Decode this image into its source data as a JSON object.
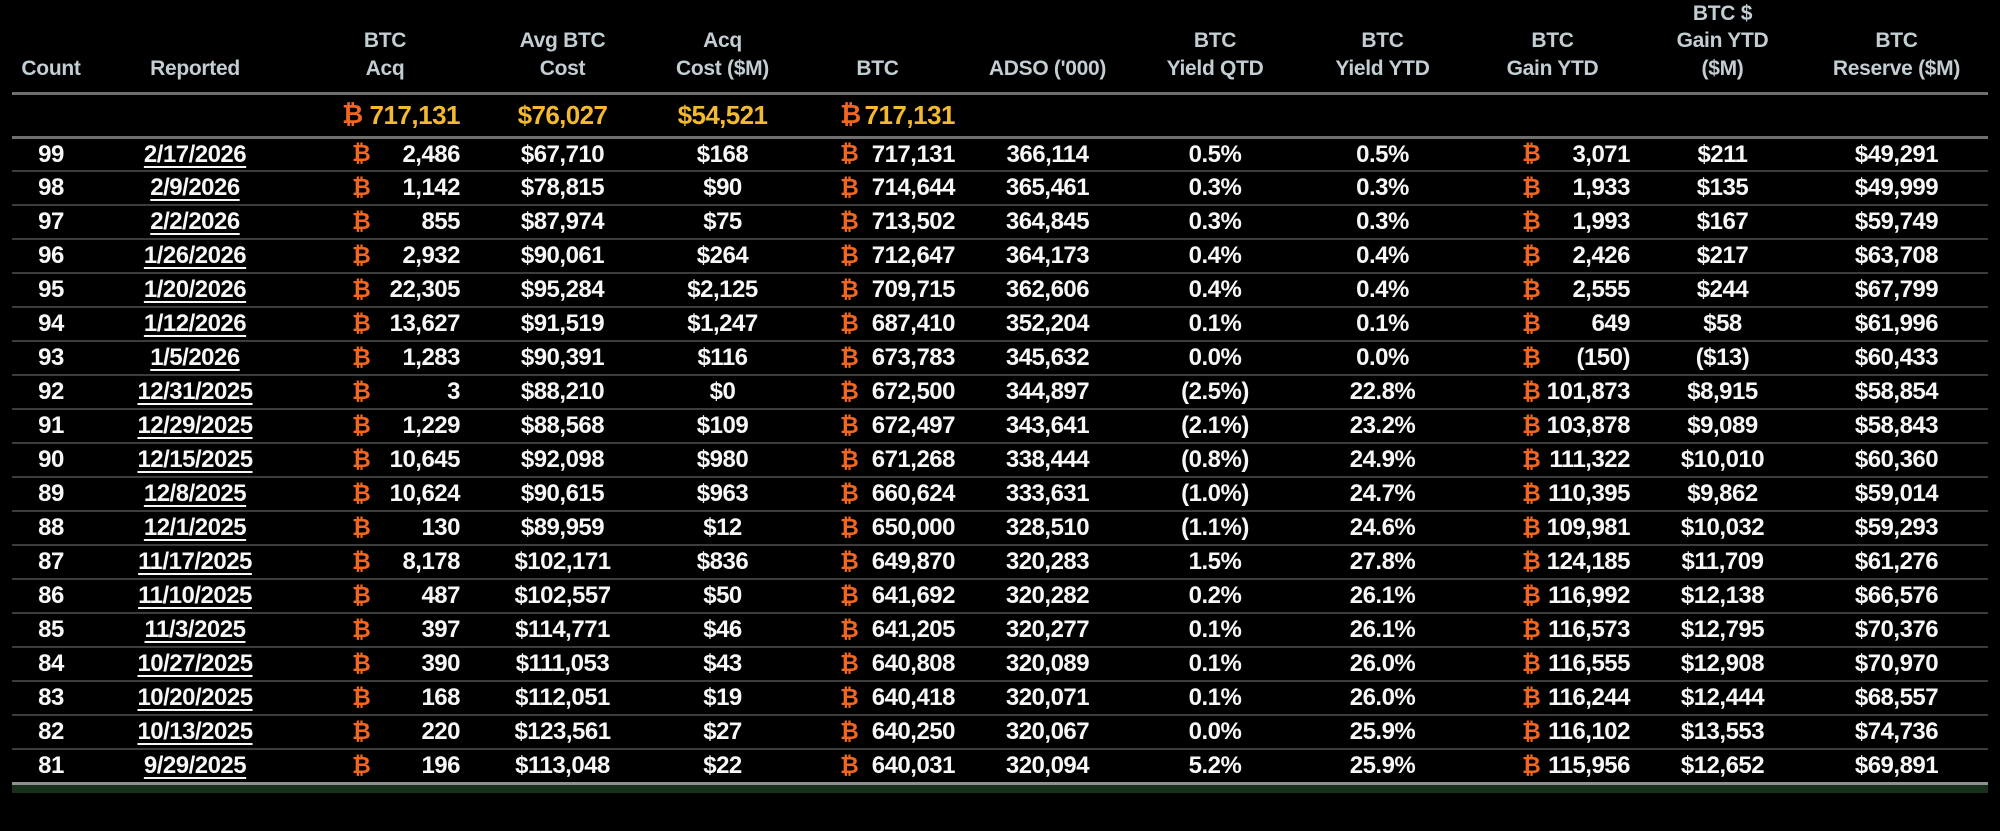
{
  "colors": {
    "background": "#000000",
    "header_text": "#c3ced3",
    "value_text": "#f7f7f7",
    "btc_orange": "#f2661f",
    "summary_gold": "#f3ba2f",
    "green_row_peek": "#17301b"
  },
  "icons": {
    "btc": "₿"
  },
  "table": {
    "columns": [
      {
        "key": "count",
        "label": "Count"
      },
      {
        "key": "reported",
        "label": "Reported"
      },
      {
        "key": "btc_acq",
        "label": "BTC\nAcq"
      },
      {
        "key": "avg_btc_cost",
        "label": "Avg BTC\nCost"
      },
      {
        "key": "acq_cost_m",
        "label": "Acq\nCost ($M)"
      },
      {
        "key": "btc",
        "label": "BTC"
      },
      {
        "key": "adso",
        "label": "ADSO ('000)"
      },
      {
        "key": "yield_qtd",
        "label": "BTC\nYield QTD"
      },
      {
        "key": "yield_ytd",
        "label": "BTC\nYield YTD"
      },
      {
        "key": "gain_ytd",
        "label": "BTC\nGain YTD"
      },
      {
        "key": "gain_ytd_m",
        "label": "BTC $\nGain YTD\n($M)"
      },
      {
        "key": "reserve_m",
        "label": "BTC\nReserve ($M)"
      }
    ],
    "summary": {
      "btc_acq": "717,131",
      "avg_btc_cost": "$76,027",
      "acq_cost_m": "$54,521",
      "btc": "717,131"
    },
    "rows": [
      {
        "count": "99",
        "reported": "2/17/2026",
        "btc_acq": "2,486",
        "avg_btc_cost": "$67,710",
        "acq_cost_m": "$168",
        "btc": "717,131",
        "adso": "366,114",
        "yield_qtd": "0.5%",
        "yield_ytd": "0.5%",
        "gain_ytd": "3,071",
        "gain_ytd_m": "$211",
        "reserve_m": "$49,291"
      },
      {
        "count": "98",
        "reported": "2/9/2026",
        "btc_acq": "1,142",
        "avg_btc_cost": "$78,815",
        "acq_cost_m": "$90",
        "btc": "714,644",
        "adso": "365,461",
        "yield_qtd": "0.3%",
        "yield_ytd": "0.3%",
        "gain_ytd": "1,933",
        "gain_ytd_m": "$135",
        "reserve_m": "$49,999"
      },
      {
        "count": "97",
        "reported": "2/2/2026",
        "btc_acq": "855",
        "avg_btc_cost": "$87,974",
        "acq_cost_m": "$75",
        "btc": "713,502",
        "adso": "364,845",
        "yield_qtd": "0.3%",
        "yield_ytd": "0.3%",
        "gain_ytd": "1,993",
        "gain_ytd_m": "$167",
        "reserve_m": "$59,749"
      },
      {
        "count": "96",
        "reported": "1/26/2026",
        "btc_acq": "2,932",
        "avg_btc_cost": "$90,061",
        "acq_cost_m": "$264",
        "btc": "712,647",
        "adso": "364,173",
        "yield_qtd": "0.4%",
        "yield_ytd": "0.4%",
        "gain_ytd": "2,426",
        "gain_ytd_m": "$217",
        "reserve_m": "$63,708"
      },
      {
        "count": "95",
        "reported": "1/20/2026",
        "btc_acq": "22,305",
        "avg_btc_cost": "$95,284",
        "acq_cost_m": "$2,125",
        "btc": "709,715",
        "adso": "362,606",
        "yield_qtd": "0.4%",
        "yield_ytd": "0.4%",
        "gain_ytd": "2,555",
        "gain_ytd_m": "$244",
        "reserve_m": "$67,799"
      },
      {
        "count": "94",
        "reported": "1/12/2026",
        "btc_acq": "13,627",
        "avg_btc_cost": "$91,519",
        "acq_cost_m": "$1,247",
        "btc": "687,410",
        "adso": "352,204",
        "yield_qtd": "0.1%",
        "yield_ytd": "0.1%",
        "gain_ytd": "649",
        "gain_ytd_m": "$58",
        "reserve_m": "$61,996"
      },
      {
        "count": "93",
        "reported": "1/5/2026",
        "btc_acq": "1,283",
        "avg_btc_cost": "$90,391",
        "acq_cost_m": "$116",
        "btc": "673,783",
        "adso": "345,632",
        "yield_qtd": "0.0%",
        "yield_ytd": "0.0%",
        "gain_ytd": "(150)",
        "gain_ytd_m": "($13)",
        "reserve_m": "$60,433"
      },
      {
        "count": "92",
        "reported": "12/31/2025",
        "btc_acq": "3",
        "avg_btc_cost": "$88,210",
        "acq_cost_m": "$0",
        "btc": "672,500",
        "adso": "344,897",
        "yield_qtd": "(2.5%)",
        "yield_ytd": "22.8%",
        "gain_ytd": "101,873",
        "gain_ytd_m": "$8,915",
        "reserve_m": "$58,854"
      },
      {
        "count": "91",
        "reported": "12/29/2025",
        "btc_acq": "1,229",
        "avg_btc_cost": "$88,568",
        "acq_cost_m": "$109",
        "btc": "672,497",
        "adso": "343,641",
        "yield_qtd": "(2.1%)",
        "yield_ytd": "23.2%",
        "gain_ytd": "103,878",
        "gain_ytd_m": "$9,089",
        "reserve_m": "$58,843"
      },
      {
        "count": "90",
        "reported": "12/15/2025",
        "btc_acq": "10,645",
        "avg_btc_cost": "$92,098",
        "acq_cost_m": "$980",
        "btc": "671,268",
        "adso": "338,444",
        "yield_qtd": "(0.8%)",
        "yield_ytd": "24.9%",
        "gain_ytd": "111,322",
        "gain_ytd_m": "$10,010",
        "reserve_m": "$60,360"
      },
      {
        "count": "89",
        "reported": "12/8/2025",
        "btc_acq": "10,624",
        "avg_btc_cost": "$90,615",
        "acq_cost_m": "$963",
        "btc": "660,624",
        "adso": "333,631",
        "yield_qtd": "(1.0%)",
        "yield_ytd": "24.7%",
        "gain_ytd": "110,395",
        "gain_ytd_m": "$9,862",
        "reserve_m": "$59,014"
      },
      {
        "count": "88",
        "reported": "12/1/2025",
        "btc_acq": "130",
        "avg_btc_cost": "$89,959",
        "acq_cost_m": "$12",
        "btc": "650,000",
        "adso": "328,510",
        "yield_qtd": "(1.1%)",
        "yield_ytd": "24.6%",
        "gain_ytd": "109,981",
        "gain_ytd_m": "$10,032",
        "reserve_m": "$59,293"
      },
      {
        "count": "87",
        "reported": "11/17/2025",
        "btc_acq": "8,178",
        "avg_btc_cost": "$102,171",
        "acq_cost_m": "$836",
        "btc": "649,870",
        "adso": "320,283",
        "yield_qtd": "1.5%",
        "yield_ytd": "27.8%",
        "gain_ytd": "124,185",
        "gain_ytd_m": "$11,709",
        "reserve_m": "$61,276"
      },
      {
        "count": "86",
        "reported": "11/10/2025",
        "btc_acq": "487",
        "avg_btc_cost": "$102,557",
        "acq_cost_m": "$50",
        "btc": "641,692",
        "adso": "320,282",
        "yield_qtd": "0.2%",
        "yield_ytd": "26.1%",
        "gain_ytd": "116,992",
        "gain_ytd_m": "$12,138",
        "reserve_m": "$66,576"
      },
      {
        "count": "85",
        "reported": "11/3/2025",
        "btc_acq": "397",
        "avg_btc_cost": "$114,771",
        "acq_cost_m": "$46",
        "btc": "641,205",
        "adso": "320,277",
        "yield_qtd": "0.1%",
        "yield_ytd": "26.1%",
        "gain_ytd": "116,573",
        "gain_ytd_m": "$12,795",
        "reserve_m": "$70,376"
      },
      {
        "count": "84",
        "reported": "10/27/2025",
        "btc_acq": "390",
        "avg_btc_cost": "$111,053",
        "acq_cost_m": "$43",
        "btc": "640,808",
        "adso": "320,089",
        "yield_qtd": "0.1%",
        "yield_ytd": "26.0%",
        "gain_ytd": "116,555",
        "gain_ytd_m": "$12,908",
        "reserve_m": "$70,970"
      },
      {
        "count": "83",
        "reported": "10/20/2025",
        "btc_acq": "168",
        "avg_btc_cost": "$112,051",
        "acq_cost_m": "$19",
        "btc": "640,418",
        "adso": "320,071",
        "yield_qtd": "0.1%",
        "yield_ytd": "26.0%",
        "gain_ytd": "116,244",
        "gain_ytd_m": "$12,444",
        "reserve_m": "$68,557"
      },
      {
        "count": "82",
        "reported": "10/13/2025",
        "btc_acq": "220",
        "avg_btc_cost": "$123,561",
        "acq_cost_m": "$27",
        "btc": "640,250",
        "adso": "320,067",
        "yield_qtd": "0.0%",
        "yield_ytd": "25.9%",
        "gain_ytd": "116,102",
        "gain_ytd_m": "$13,553",
        "reserve_m": "$74,736"
      },
      {
        "count": "81",
        "reported": "9/29/2025",
        "btc_acq": "196",
        "avg_btc_cost": "$113,048",
        "acq_cost_m": "$22",
        "btc": "640,031",
        "adso": "320,094",
        "yield_qtd": "5.2%",
        "yield_ytd": "25.9%",
        "gain_ytd": "115,956",
        "gain_ytd_m": "$12,652",
        "reserve_m": "$69,891"
      }
    ]
  }
}
